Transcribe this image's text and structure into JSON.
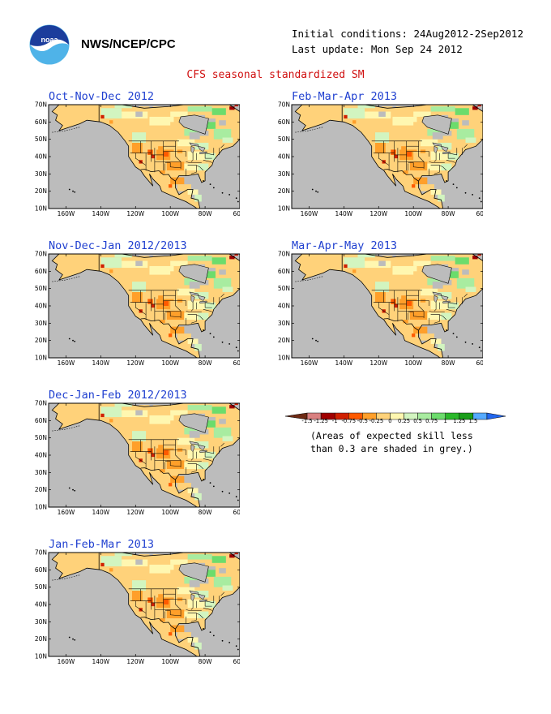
{
  "header": {
    "org": "NWS/NCEP/CPC",
    "initial_conditions": "Initial conditions: 24Aug2012-2Sep2012",
    "last_update": "Last update: Mon Sep 24 2012",
    "title": "CFS seasonal standardized SM"
  },
  "logo": {
    "text": "noaa"
  },
  "axes": {
    "lat_labels": [
      "70N",
      "60N",
      "50N",
      "40N",
      "30N",
      "20N",
      "10N"
    ],
    "lon_labels": [
      "160W",
      "140W",
      "120W",
      "100W",
      "80W",
      "60W"
    ]
  },
  "panels": [
    {
      "title": "Oct-Nov-Dec 2012"
    },
    {
      "title": "Feb-Mar-Apr 2013"
    },
    {
      "title": "Nov-Dec-Jan 2012/2013"
    },
    {
      "title": "Mar-Apr-May 2013"
    },
    {
      "title": "Dec-Jan-Feb 2012/2013"
    },
    {
      "title": "Jan-Feb-Mar 2013"
    }
  ],
  "colorbar": {
    "labels": [
      "-1.5",
      "-1.25",
      "-1",
      "-0.75",
      "-0.5",
      "-0.25",
      "0",
      "0.25",
      "0.5",
      "0.75",
      "1",
      "1.25",
      "1.5"
    ],
    "colors": [
      "#6e2a14",
      "#d98080",
      "#a00000",
      "#d02000",
      "#ff5a00",
      "#ff9f2a",
      "#ffd27a",
      "#fff7b0",
      "#d2f5c0",
      "#a8eca0",
      "#6cdc6c",
      "#2ab82a",
      "#1a9e1a",
      "#55aaff",
      "#2266ee"
    ],
    "note_line1": "(Areas of expected skill less",
    "note_line2": "than 0.3 are shaded in grey.)"
  }
}
